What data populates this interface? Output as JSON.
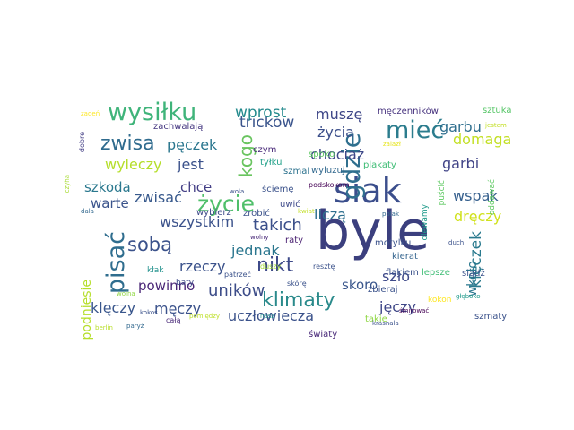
{
  "word_cloud": {
    "words": [
      {
        "text": "byle",
        "color": "#3b3f7e"
      },
      {
        "text": "siak",
        "color": "#3b4e8c"
      },
      {
        "text": "gdzie",
        "color": "#2f6f8e"
      },
      {
        "text": "wysiłku",
        "color": "#3fb47a"
      },
      {
        "text": "mieć",
        "color": "#2b7c8d"
      },
      {
        "text": "pisać",
        "color": "#2f6d8e"
      },
      {
        "text": "życie",
        "color": "#4fbf6a"
      },
      {
        "text": "klimaty",
        "color": "#2a8a8b"
      },
      {
        "text": "nikt",
        "color": "#3e4a89"
      },
      {
        "text": "zwisa",
        "color": "#2f6b8e"
      },
      {
        "text": "sobą",
        "color": "#3b528b"
      },
      {
        "text": "kogo",
        "color": "#69c45f"
      },
      {
        "text": "kłęczek",
        "color": "#2a7a8e"
      },
      {
        "text": "takich",
        "color": "#3b4f8a"
      },
      {
        "text": "uników",
        "color": "#3d4d89"
      },
      {
        "text": "tricków",
        "color": "#3a548c"
      },
      {
        "text": "wprost",
        "color": "#238a8d"
      },
      {
        "text": "muszę",
        "color": "#3f4788"
      },
      {
        "text": "garbu",
        "color": "#2e6e8e"
      },
      {
        "text": "życia",
        "color": "#3c4f8a"
      },
      {
        "text": "pęczek",
        "color": "#2a768e"
      },
      {
        "text": "wyleczy",
        "color": "#b5de2b"
      },
      {
        "text": "jest",
        "color": "#3b528b"
      },
      {
        "text": "chociaż",
        "color": "#3e4989"
      },
      {
        "text": "domaga",
        "color": "#c2df23"
      },
      {
        "text": "garbi",
        "color": "#414487"
      },
      {
        "text": "szkoda",
        "color": "#2a788e"
      },
      {
        "text": "chce",
        "color": "#433e85"
      },
      {
        "text": "zwisać",
        "color": "#38598c"
      },
      {
        "text": "wspak",
        "color": "#355f8d"
      },
      {
        "text": "warte",
        "color": "#3a538b"
      },
      {
        "text": "wszystkim",
        "color": "#3b528b"
      },
      {
        "text": "liczą",
        "color": "#2e6f8e"
      },
      {
        "text": "dręczy",
        "color": "#d0e11c"
      },
      {
        "text": "jednak",
        "color": "#2a768e"
      },
      {
        "text": "rzeczy",
        "color": "#3b528b"
      },
      {
        "text": "powinno",
        "color": "#482475"
      },
      {
        "text": "skoro",
        "color": "#39568c"
      },
      {
        "text": "szło",
        "color": "#3e4989"
      },
      {
        "text": "wkoło",
        "color": "#2a778e"
      },
      {
        "text": "podniesie",
        "color": "#b5de2b"
      },
      {
        "text": "klęczy",
        "color": "#39568c"
      },
      {
        "text": "męczy",
        "color": "#3b528b"
      },
      {
        "text": "uczłowiecza",
        "color": "#3b528b"
      },
      {
        "text": "jęczy",
        "color": "#3f4788"
      },
      {
        "text": "męczenników",
        "color": "#46327e"
      },
      {
        "text": "sztuka",
        "color": "#56c667"
      },
      {
        "text": "zachwalają",
        "color": "#453781"
      },
      {
        "text": "czym",
        "color": "#482878"
      },
      {
        "text": "tyłku",
        "color": "#1fa088"
      },
      {
        "text": "szmal",
        "color": "#2c728e"
      },
      {
        "text": "ściemę",
        "color": "#3b528b"
      },
      {
        "text": "wyluzuj",
        "color": "#31688e"
      },
      {
        "text": "plakaty",
        "color": "#3dbc74"
      },
      {
        "text": "spoko",
        "color": "#5ec962"
      },
      {
        "text": "oddawać",
        "color": "#5ec962"
      },
      {
        "text": "puścić",
        "color": "#5ec962"
      },
      {
        "text": "olewamy",
        "color": "#1f9a8a"
      },
      {
        "text": "podskokom",
        "color": "#440154"
      },
      {
        "text": "wybierz",
        "color": "#3e4a89"
      },
      {
        "text": "uwić",
        "color": "#3e4a89"
      },
      {
        "text": "zrobić",
        "color": "#3b528b"
      },
      {
        "text": "raty",
        "color": "#481f70"
      },
      {
        "text": "motylku",
        "color": "#3b528b"
      },
      {
        "text": "kierat",
        "color": "#33638d"
      },
      {
        "text": "siądź",
        "color": "#3b528b"
      },
      {
        "text": "lepsze",
        "color": "#3dbc74"
      },
      {
        "text": "flakiem",
        "color": "#3b528b"
      },
      {
        "text": "zbieraj",
        "color": "#3b528b"
      },
      {
        "text": "światy",
        "color": "#482878"
      },
      {
        "text": "takie",
        "color": "#8fd744"
      },
      {
        "text": "szmaty",
        "color": "#3b528b"
      },
      {
        "text": "kokon",
        "color": "#fde725"
      },
      {
        "text": "baty",
        "color": "#3e4a89"
      },
      {
        "text": "kłak",
        "color": "#21918c"
      },
      {
        "text": "resztę",
        "color": "#3b528b"
      },
      {
        "text": "skórę",
        "color": "#3b528b"
      },
      {
        "text": "duszy",
        "color": "#a2da37"
      },
      {
        "text": "patrzeć",
        "color": "#3b528b"
      },
      {
        "text": "całą",
        "color": "#482878"
      },
      {
        "text": "dobre",
        "color": "#433e85"
      },
      {
        "text": "czyha",
        "color": "#a8db34"
      },
      {
        "text": "zadeń",
        "color": "#fde725"
      },
      {
        "text": "berlin",
        "color": "#b8de29"
      },
      {
        "text": "jestem",
        "color": "#c2df23"
      },
      {
        "text": "zalazł",
        "color": "#e5e419"
      },
      {
        "text": "wola",
        "color": "#3b528b"
      },
      {
        "text": "dala",
        "color": "#31688e"
      },
      {
        "text": "kokos",
        "color": "#3b528b"
      },
      {
        "text": "paryż",
        "color": "#31688e"
      },
      {
        "text": "wolna",
        "color": "#90d743"
      },
      {
        "text": "kwiat",
        "color": "#c2df23"
      },
      {
        "text": "wolny",
        "color": "#482878"
      },
      {
        "text": "duch",
        "color": "#3b528b"
      },
      {
        "text": "krasnala",
        "color": "#3b528b"
      },
      {
        "text": "głęboko",
        "color": "#1f9a8a"
      },
      {
        "text": "śmirować",
        "color": "#440154"
      },
      {
        "text": "polak",
        "color": "#31688e"
      },
      {
        "text": "pomiędzy",
        "color": "#bddf26"
      },
      {
        "text": "nasz",
        "color": "#21918c"
      }
    ]
  }
}
